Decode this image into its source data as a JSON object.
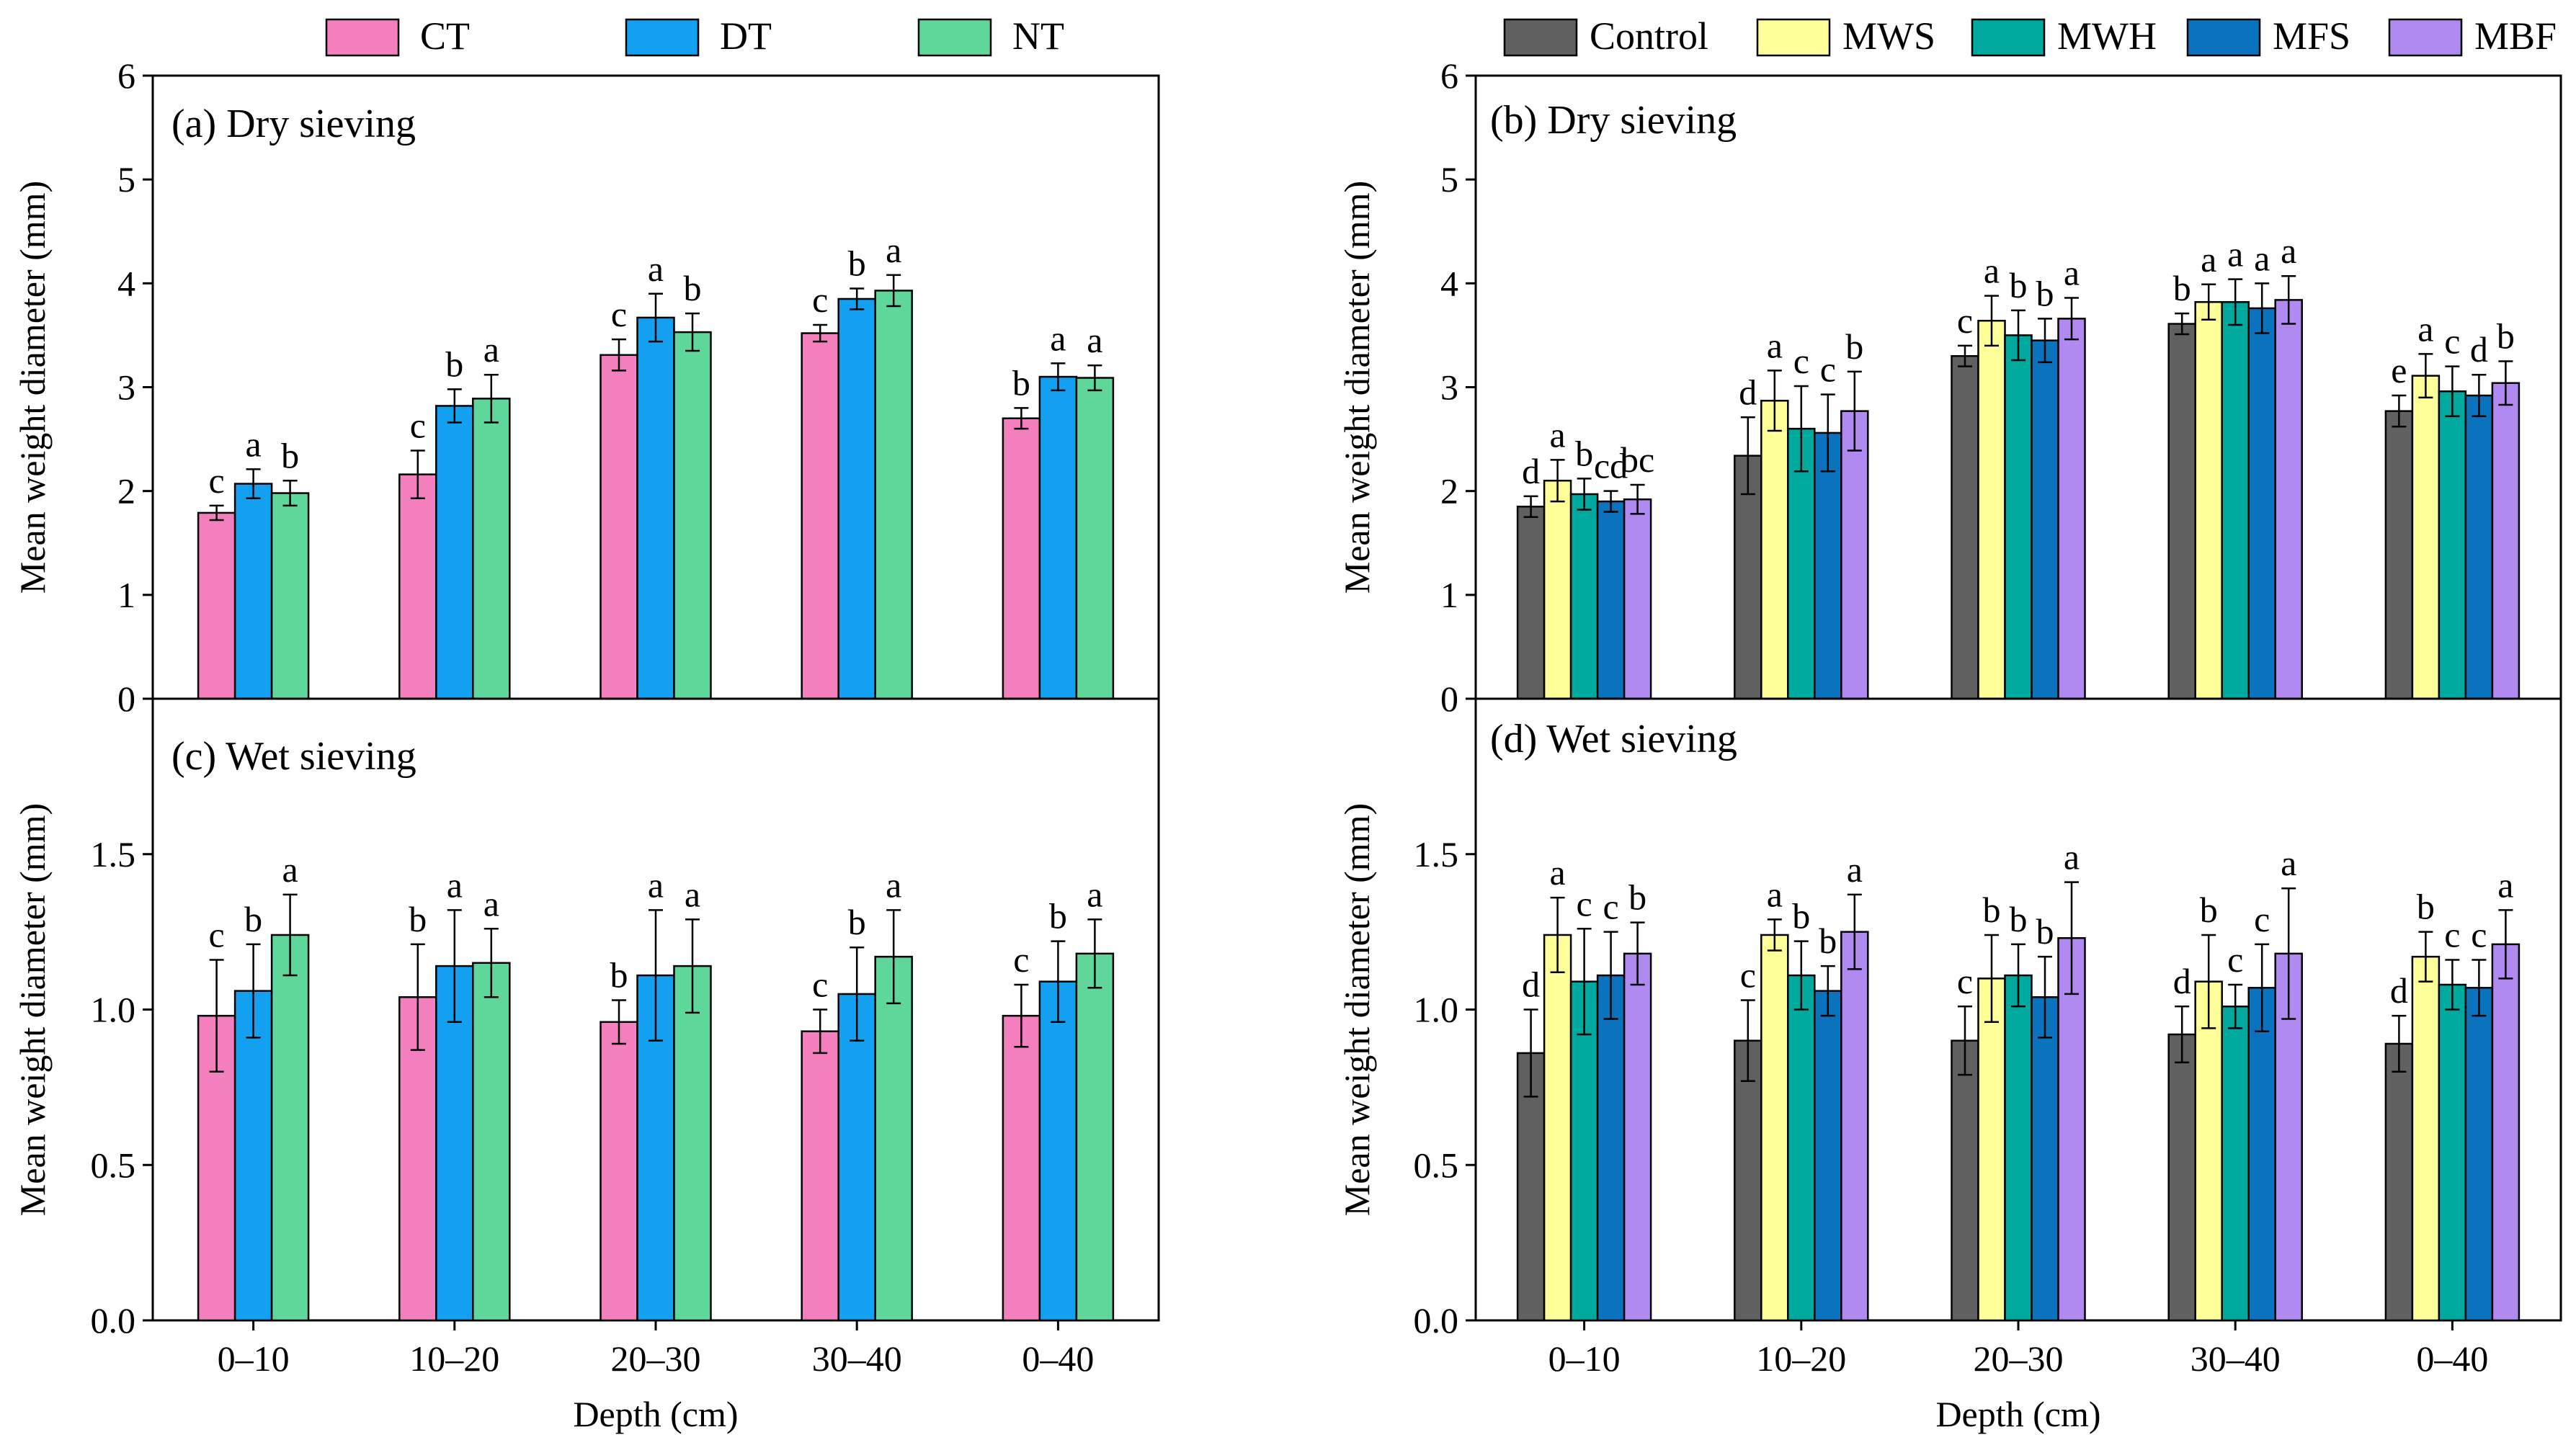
{
  "legends": {
    "left": [
      {
        "key": "CT",
        "color": "#f47fbf"
      },
      {
        "key": "DT",
        "color": "#14a0f0"
      },
      {
        "key": "NT",
        "color": "#5fd79b"
      }
    ],
    "right": [
      {
        "key": "Control",
        "color": "#606060"
      },
      {
        "key": "MWS",
        "color": "#ffff99"
      },
      {
        "key": "MWH",
        "color": "#00a99d"
      },
      {
        "key": "MFS",
        "color": "#0b73bd"
      },
      {
        "key": "MBF",
        "color": "#b08af0"
      }
    ]
  },
  "chart_data": [
    {
      "type": "bar",
      "panel": "a",
      "title": "(a) Dry sieving",
      "ylabel": "Mean weight diameter (mm)",
      "xlabel": "",
      "ylim": [
        0,
        6
      ],
      "yticks": [
        "0",
        "1",
        "2",
        "3",
        "4",
        "5",
        "6"
      ],
      "categories": [
        "0–10",
        "10–20",
        "20–30",
        "30–40",
        "0–40"
      ],
      "series": [
        {
          "name": "CT",
          "values": [
            1.79,
            2.16,
            3.31,
            3.52,
            2.7
          ],
          "errors": [
            0.07,
            0.23,
            0.15,
            0.08,
            0.1
          ],
          "letters": [
            "c",
            "c",
            "c",
            "c",
            "b"
          ]
        },
        {
          "name": "DT",
          "values": [
            2.07,
            2.82,
            3.67,
            3.85,
            3.1
          ],
          "errors": [
            0.14,
            0.16,
            0.23,
            0.1,
            0.13
          ],
          "letters": [
            "a",
            "b",
            "a",
            "b",
            "a"
          ]
        },
        {
          "name": "NT",
          "values": [
            1.98,
            2.89,
            3.53,
            3.93,
            3.09
          ],
          "errors": [
            0.12,
            0.23,
            0.18,
            0.15,
            0.12
          ],
          "letters": [
            "b",
            "a",
            "b",
            "a",
            "a"
          ]
        }
      ]
    },
    {
      "type": "bar",
      "panel": "b",
      "title": "(b) Dry sieving",
      "ylabel": "Mean weight diameter (mm)",
      "xlabel": "",
      "ylim": [
        0,
        6
      ],
      "yticks": [
        "0",
        "1",
        "2",
        "3",
        "4",
        "5",
        "6"
      ],
      "categories": [
        "0–10",
        "10–20",
        "20–30",
        "30–40",
        "0–40"
      ],
      "series": [
        {
          "name": "Control",
          "values": [
            1.85,
            2.34,
            3.3,
            3.61,
            2.77
          ],
          "errors": [
            0.1,
            0.37,
            0.1,
            0.1,
            0.15
          ],
          "letters": [
            "d",
            "d",
            "c",
            "b",
            "e"
          ]
        },
        {
          "name": "MWS",
          "values": [
            2.1,
            2.87,
            3.64,
            3.82,
            3.11
          ],
          "errors": [
            0.2,
            0.29,
            0.24,
            0.17,
            0.21
          ],
          "letters": [
            "a",
            "a",
            "a",
            "a",
            "a"
          ]
        },
        {
          "name": "MWH",
          "values": [
            1.97,
            2.6,
            3.5,
            3.82,
            2.96
          ],
          "errors": [
            0.15,
            0.41,
            0.24,
            0.22,
            0.24
          ],
          "letters": [
            "b",
            "c",
            "b",
            "a",
            "c"
          ]
        },
        {
          "name": "MFS",
          "values": [
            1.9,
            2.56,
            3.45,
            3.76,
            2.92
          ],
          "errors": [
            0.1,
            0.37,
            0.21,
            0.24,
            0.2
          ],
          "letters": [
            "cd",
            "c",
            "b",
            "a",
            "d"
          ]
        },
        {
          "name": "MBF",
          "values": [
            1.92,
            2.77,
            3.66,
            3.84,
            3.04
          ],
          "errors": [
            0.14,
            0.38,
            0.2,
            0.23,
            0.21
          ],
          "letters": [
            "bc",
            "b",
            "a",
            "a",
            "b"
          ]
        }
      ]
    },
    {
      "type": "bar",
      "panel": "c",
      "title": "(c) Wet sieving",
      "ylabel": "Mean weight diameter (mm)",
      "xlabel": "Depth (cm)",
      "ylim": [
        0,
        2
      ],
      "yticks": [
        "0.0",
        "0.5",
        "1.0",
        "1.5"
      ],
      "categories": [
        "0–10",
        "10–20",
        "20–30",
        "30–40",
        "0–40"
      ],
      "series": [
        {
          "name": "CT",
          "values": [
            0.98,
            1.04,
            0.96,
            0.93,
            0.98
          ],
          "errors": [
            0.18,
            0.17,
            0.07,
            0.07,
            0.1
          ],
          "letters": [
            "c",
            "b",
            "b",
            "c",
            "c"
          ]
        },
        {
          "name": "DT",
          "values": [
            1.06,
            1.14,
            1.11,
            1.05,
            1.09
          ],
          "errors": [
            0.15,
            0.18,
            0.21,
            0.15,
            0.13
          ],
          "letters": [
            "b",
            "a",
            "a",
            "b",
            "b"
          ]
        },
        {
          "name": "NT",
          "values": [
            1.24,
            1.15,
            1.14,
            1.17,
            1.18
          ],
          "errors": [
            0.13,
            0.11,
            0.15,
            0.15,
            0.11
          ],
          "letters": [
            "a",
            "a",
            "a",
            "a",
            "a"
          ]
        }
      ]
    },
    {
      "type": "bar",
      "panel": "d",
      "title": "(d) Wet sieving",
      "ylabel": "Mean weight diameter (mm)",
      "xlabel": "Depth (cm)",
      "ylim": [
        0,
        2
      ],
      "yticks": [
        "0.0",
        "0.5",
        "1.0",
        "1.5"
      ],
      "categories": [
        "0–10",
        "10–20",
        "20–30",
        "30–40",
        "0–40"
      ],
      "series": [
        {
          "name": "Control",
          "values": [
            0.86,
            0.9,
            0.9,
            0.92,
            0.89
          ],
          "errors": [
            0.14,
            0.13,
            0.11,
            0.09,
            0.09
          ],
          "letters": [
            "d",
            "c",
            "c",
            "d",
            "d"
          ]
        },
        {
          "name": "MWS",
          "values": [
            1.24,
            1.24,
            1.1,
            1.09,
            1.17
          ],
          "errors": [
            0.12,
            0.05,
            0.14,
            0.15,
            0.08
          ],
          "letters": [
            "a",
            "a",
            "b",
            "b",
            "b"
          ]
        },
        {
          "name": "MWH",
          "values": [
            1.09,
            1.11,
            1.11,
            1.01,
            1.08
          ],
          "errors": [
            0.17,
            0.11,
            0.1,
            0.07,
            0.08
          ],
          "letters": [
            "c",
            "b",
            "b",
            "c",
            "c"
          ]
        },
        {
          "name": "MFS",
          "values": [
            1.11,
            1.06,
            1.04,
            1.07,
            1.07
          ],
          "errors": [
            0.14,
            0.08,
            0.13,
            0.14,
            0.09
          ],
          "letters": [
            "c",
            "b",
            "b",
            "c",
            "c"
          ]
        },
        {
          "name": "MBF",
          "values": [
            1.18,
            1.25,
            1.23,
            1.18,
            1.21
          ],
          "errors": [
            0.1,
            0.12,
            0.18,
            0.21,
            0.11
          ],
          "letters": [
            "b",
            "a",
            "a",
            "a",
            "a"
          ]
        }
      ]
    }
  ]
}
